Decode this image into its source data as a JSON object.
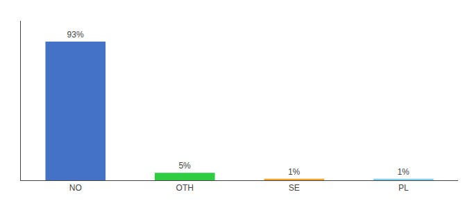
{
  "chart_data": {
    "type": "bar",
    "categories": [
      "NO",
      "OTH",
      "SE",
      "PL"
    ],
    "values": [
      93,
      5,
      1,
      1
    ],
    "value_labels": [
      "93%",
      "5%",
      "1%",
      "1%"
    ],
    "data_labels": true,
    "colors": [
      "#4472C4",
      "#2ECC40",
      "#F4A62A",
      "#87CEEB"
    ],
    "ylim": [
      0,
      107
    ],
    "tick_labels": "x",
    "grid": false
  }
}
